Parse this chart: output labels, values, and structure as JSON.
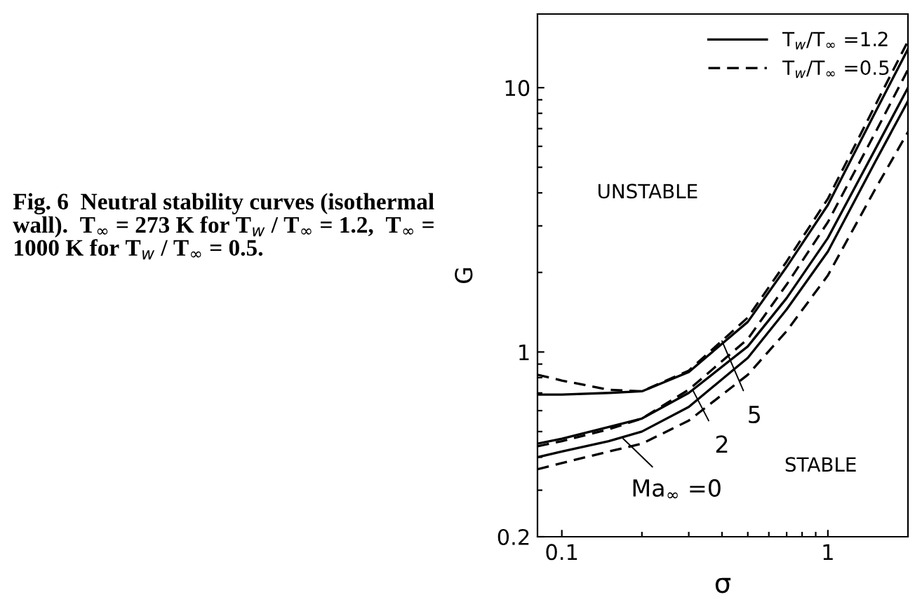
{
  "chart_data": {
    "type": "line",
    "title": "Fig. 6  Neutral stability curves (isothermal wall).  T$_{∞}$ = 273 K for T$_{w}$ / T$_{∞}$ = 1.2,  T$_{∞}$ = 1000 K for T$_{w}$ / T$_{∞}$ = 0.5.",
    "xlabel": "σ",
    "ylabel": "G",
    "log": "xy",
    "legend": "top right",
    "grid": false,
    "marker": "none",
    "x": [
      0.081,
      0.1,
      0.15,
      0.2,
      0.3,
      0.5,
      0.7,
      1,
      1.5,
      2
    ],
    "series": [
      {
        "name": "T$_{w}$/T$_{∞}$ =1.2",
        "color": "#000000",
        "line_style": "solid",
        "values": [
          0.69,
          0.69,
          0.7,
          0.71,
          0.84,
          1.3,
          2.1,
          3.6,
          8,
          14
        ]
      },
      {
        "name": "T$_{w}$/T$_{∞}$ =0.5",
        "color": "#000000",
        "line_style": "dashed",
        "values": [
          0.82,
          0.78,
          0.72,
          0.71,
          0.85,
          1.35,
          2.2,
          3.8,
          8.5,
          15
        ]
      },
      {
        "color": "#000000",
        "line_style": "solid",
        "values": [
          0.45,
          0.47,
          0.52,
          0.56,
          0.7,
          1.05,
          1.6,
          2.7,
          5.8,
          10
        ]
      },
      {
        "color": "#000000",
        "line_style": "dashed",
        "values": [
          0.44,
          0.46,
          0.51,
          0.56,
          0.72,
          1.12,
          1.8,
          3.1,
          6.7,
          11.7
        ]
      },
      {
        "color": "#000000",
        "line_style": "solid",
        "values": [
          0.4,
          0.42,
          0.46,
          0.5,
          0.62,
          0.95,
          1.45,
          2.4,
          5.2,
          8.9
        ]
      },
      {
        "color": "#000000",
        "line_style": "dashed",
        "values": [
          0.36,
          0.38,
          0.42,
          0.45,
          0.55,
          0.82,
          1.2,
          1.95,
          4.1,
          6.8
        ]
      }
    ],
    "xlim": [
      0.081,
      2.0
    ],
    "ylim": [
      0.2,
      19
    ],
    "xticks": [
      0.1,
      {
        "value": 0.2,
        "label": null
      },
      {
        "value": 0.3,
        "label": null
      },
      {
        "value": 0.4,
        "label": null
      },
      {
        "value": 0.5,
        "label": null
      },
      {
        "value": 0.6,
        "label": null
      },
      {
        "value": 0.7,
        "label": null
      },
      {
        "value": 0.8,
        "label": null
      },
      {
        "value": 0.9,
        "label": null
      },
      1
    ],
    "yticks": [
      0.2,
      {
        "value": 0.3,
        "label": null
      },
      {
        "value": 0.4,
        "label": null
      },
      {
        "value": 0.5,
        "label": null
      },
      {
        "value": 0.6,
        "label": null
      },
      {
        "value": 0.7,
        "label": null
      },
      {
        "value": 0.8,
        "label": null
      },
      {
        "value": 0.9,
        "label": null
      },
      1,
      {
        "value": 2,
        "label": null
      },
      {
        "value": 3,
        "label": null
      },
      {
        "value": 4,
        "label": null
      },
      {
        "value": 5,
        "label": null
      },
      {
        "value": 6,
        "label": null
      },
      {
        "value": 7,
        "label": null
      },
      {
        "value": 8,
        "label": null
      },
      {
        "value": 9,
        "label": null
      },
      10
    ],
    "annotations": [
      "UNSTABLE",
      "STABLE",
      {
        "text": "5",
        "x": 0.4,
        "y": 1.1
      },
      {
        "text": "2",
        "x": 0.31,
        "y": 0.72
      },
      {
        "text": "Ma$_{∞}$ =0",
        "x": 0.17,
        "y": 0.47
      }
    ]
  }
}
